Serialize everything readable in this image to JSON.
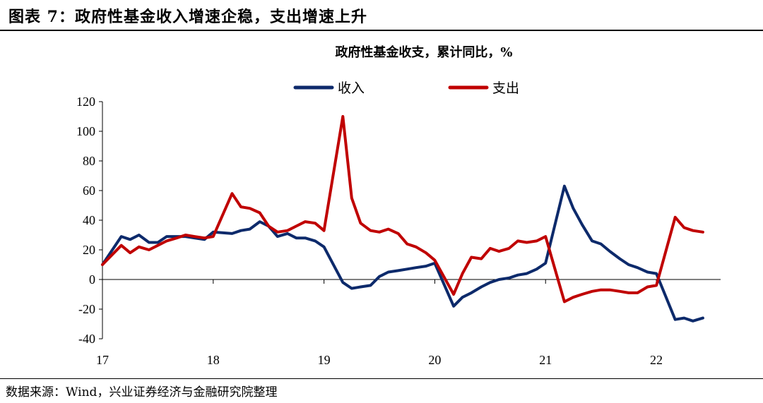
{
  "figure": {
    "title": "图表 7：政府性基金收入增速企稳，支出增速上升",
    "source": "数据来源：Wind，兴业证券经济与金融研究院整理"
  },
  "chart_data": {
    "type": "line",
    "title": "政府性基金收支，累计同比，%",
    "xlabel": "",
    "ylabel": "",
    "ylim": [
      -40,
      120
    ],
    "yticks": [
      -40,
      -20,
      0,
      20,
      40,
      60,
      80,
      100,
      120
    ],
    "xlim": [
      17.0,
      22.58
    ],
    "xticks": [
      "17",
      "18",
      "19",
      "20",
      "21",
      "22"
    ],
    "legend": "top-center",
    "grid": false,
    "colors": {
      "收入": "#0d2a6b",
      "支出": "#c00000"
    },
    "series": [
      {
        "name": "收入",
        "x": [
          17.0,
          17.17,
          17.25,
          17.33,
          17.42,
          17.5,
          17.58,
          17.67,
          17.75,
          17.83,
          17.92,
          18.0,
          18.17,
          18.25,
          18.33,
          18.42,
          18.5,
          18.58,
          18.67,
          18.75,
          18.83,
          18.92,
          19.0,
          19.17,
          19.25,
          19.33,
          19.42,
          19.5,
          19.58,
          19.67,
          19.75,
          19.83,
          19.92,
          20.0,
          20.17,
          20.25,
          20.33,
          20.42,
          20.5,
          20.58,
          20.67,
          20.75,
          20.83,
          20.92,
          21.0,
          21.17,
          21.25,
          21.33,
          21.42,
          21.5,
          21.58,
          21.67,
          21.75,
          21.83,
          21.92,
          22.0,
          22.17,
          22.25,
          22.33,
          22.42
        ],
        "values": [
          10,
          29,
          27,
          30,
          25,
          25,
          29,
          29,
          29,
          28,
          27,
          32,
          31,
          33,
          34,
          39,
          36,
          29,
          31,
          28,
          28,
          26,
          22,
          -2,
          -6,
          -5,
          -4,
          2,
          5,
          6,
          7,
          8,
          9,
          11,
          -18,
          -12,
          -9,
          -5,
          -2,
          0,
          1,
          3,
          4,
          7,
          11,
          63,
          48,
          37,
          26,
          24,
          19,
          14,
          10,
          8,
          5,
          4,
          -27,
          -26,
          -28,
          -26
        ]
      },
      {
        "name": "支出",
        "x": [
          17.0,
          17.17,
          17.25,
          17.33,
          17.42,
          17.5,
          17.58,
          17.67,
          17.75,
          17.83,
          17.92,
          18.0,
          18.17,
          18.25,
          18.33,
          18.42,
          18.5,
          18.58,
          18.67,
          18.75,
          18.83,
          18.92,
          19.0,
          19.17,
          19.25,
          19.33,
          19.42,
          19.5,
          19.58,
          19.67,
          19.75,
          19.83,
          19.92,
          20.0,
          20.17,
          20.25,
          20.33,
          20.42,
          20.5,
          20.58,
          20.67,
          20.75,
          20.83,
          20.92,
          21.0,
          21.17,
          21.25,
          21.33,
          21.42,
          21.5,
          21.58,
          21.67,
          21.75,
          21.83,
          21.92,
          22.0,
          22.17,
          22.25,
          22.33,
          22.42
        ],
        "values": [
          10,
          23,
          18,
          22,
          20,
          23,
          26,
          28,
          30,
          29,
          28,
          29,
          58,
          49,
          48,
          45,
          36,
          32,
          33,
          36,
          39,
          38,
          33,
          110,
          55,
          38,
          33,
          32,
          34,
          31,
          24,
          22,
          18,
          13,
          -10,
          4,
          15,
          14,
          21,
          19,
          21,
          26,
          25,
          26,
          29,
          -15,
          -12,
          -10,
          -8,
          -7,
          -7,
          -8,
          -9,
          -9,
          -5,
          -4,
          42,
          35,
          33,
          32
        ]
      }
    ]
  }
}
